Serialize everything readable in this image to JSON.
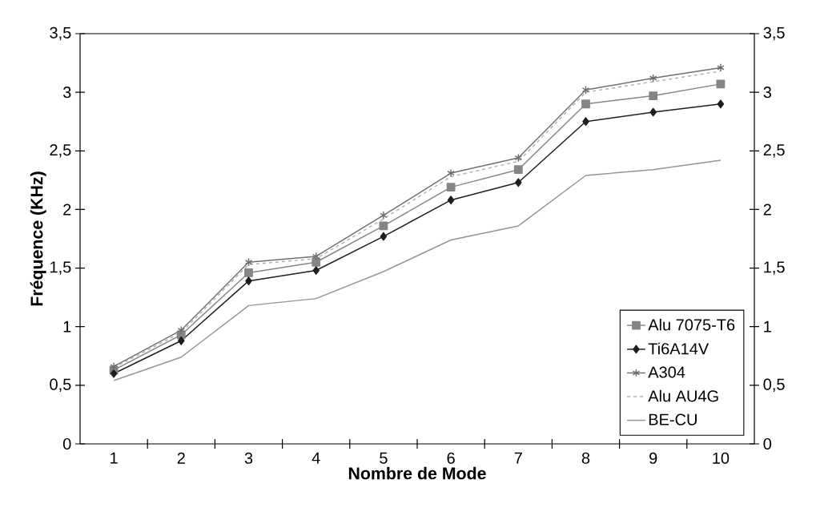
{
  "chart_data": {
    "type": "line",
    "xlabel": "Nombre de Mode",
    "ylabel": "Fréquence (KHz)",
    "categories": [
      "1",
      "2",
      "3",
      "4",
      "5",
      "6",
      "7",
      "8",
      "9",
      "10"
    ],
    "series": [
      {
        "name": "Alu 7075-T6",
        "color": "#858585",
        "marker": "square",
        "values": [
          0.63,
          0.93,
          1.46,
          1.55,
          1.86,
          2.19,
          2.34,
          2.9,
          2.97,
          3.07
        ]
      },
      {
        "name": "Ti6A14V",
        "color": "#1e1e1e",
        "marker": "diamond",
        "values": [
          0.6,
          0.88,
          1.39,
          1.48,
          1.77,
          2.08,
          2.23,
          2.75,
          2.83,
          2.9
        ]
      },
      {
        "name": "A304",
        "color": "#707070",
        "marker": "cross",
        "values": [
          0.66,
          0.97,
          1.55,
          1.6,
          1.95,
          2.31,
          2.44,
          3.02,
          3.12,
          3.21
        ]
      },
      {
        "name": "Alu AU4G",
        "color": "#b0b0b0",
        "marker": "none",
        "line_style": "dashed",
        "values": [
          0.65,
          0.95,
          1.53,
          1.58,
          1.92,
          2.28,
          2.41,
          3.0,
          3.09,
          3.18
        ]
      },
      {
        "name": "BE-CU",
        "color": "#959595",
        "marker": "none",
        "values": [
          0.54,
          0.74,
          1.18,
          1.24,
          1.47,
          1.74,
          1.86,
          2.29,
          2.34,
          2.42
        ]
      }
    ],
    "ylim": [
      0,
      3.5
    ],
    "yticks": [
      0,
      {
        "value": 0.5,
        "label": "0,5"
      },
      1,
      {
        "value": 1.5,
        "label": "1,5"
      },
      2,
      {
        "value": 2.5,
        "label": "2,5"
      },
      3,
      {
        "value": 3.5,
        "label": "3,5"
      }
    ],
    "y2lim": [
      0,
      3.5
    ],
    "y2ticks": [
      0,
      {
        "value": 0.5,
        "label": "0,5"
      },
      1,
      {
        "value": 1.5,
        "label": "1,5"
      },
      2,
      {
        "value": 2.5,
        "label": "2,5"
      },
      3,
      {
        "value": 3.5,
        "label": "3,5"
      }
    ],
    "grid": false,
    "legend": "bottom right"
  }
}
